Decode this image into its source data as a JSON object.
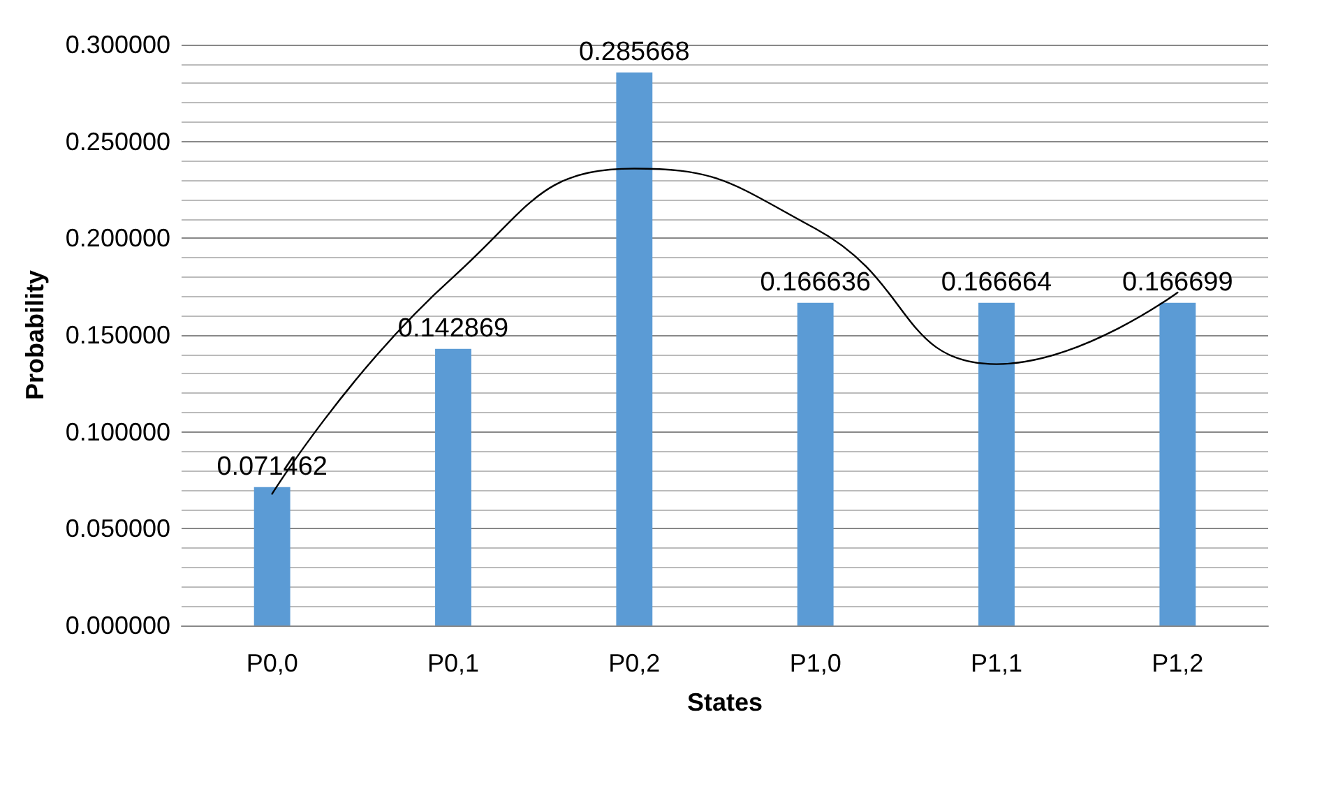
{
  "chart_data": {
    "type": "bar",
    "xlabel": "States",
    "ylabel": "Probability",
    "categories": [
      "P0,0",
      "P0,1",
      "P0,2",
      "P1,0",
      "P1,1",
      "P1,2"
    ],
    "series": [
      {
        "color": "#5b9bd5",
        "values": [
          0.071462,
          0.142869,
          0.285668,
          0.166636,
          0.166664,
          0.166699
        ],
        "value_labels": [
          "0.071462",
          "0.142869",
          "0.285668",
          "0.166636",
          "0.166664",
          "0.166699"
        ]
      },
      {
        "type": "line",
        "color": "#000000",
        "x": [
          "P0,0",
          "P0,1",
          "P0,2",
          "P1,0",
          "P1,1",
          "P1,2"
        ],
        "values": [
          0.068,
          0.18,
          0.236,
          0.205,
          0.135,
          0.172
        ],
        "marker": "none"
      }
    ],
    "ylim": [
      0,
      0.3
    ],
    "yticks": [
      {
        "value": 0,
        "label": "0.000000"
      },
      {
        "value": 0.05,
        "label": "0.050000"
      },
      {
        "value": 0.1,
        "label": "0.100000"
      },
      {
        "value": 0.15,
        "label": "0.150000"
      },
      {
        "value": 0.2,
        "label": "0.200000"
      },
      {
        "value": 0.25,
        "label": "0.250000"
      },
      {
        "value": 0.3,
        "label": "0.300000"
      }
    ],
    "grid": "y"
  }
}
